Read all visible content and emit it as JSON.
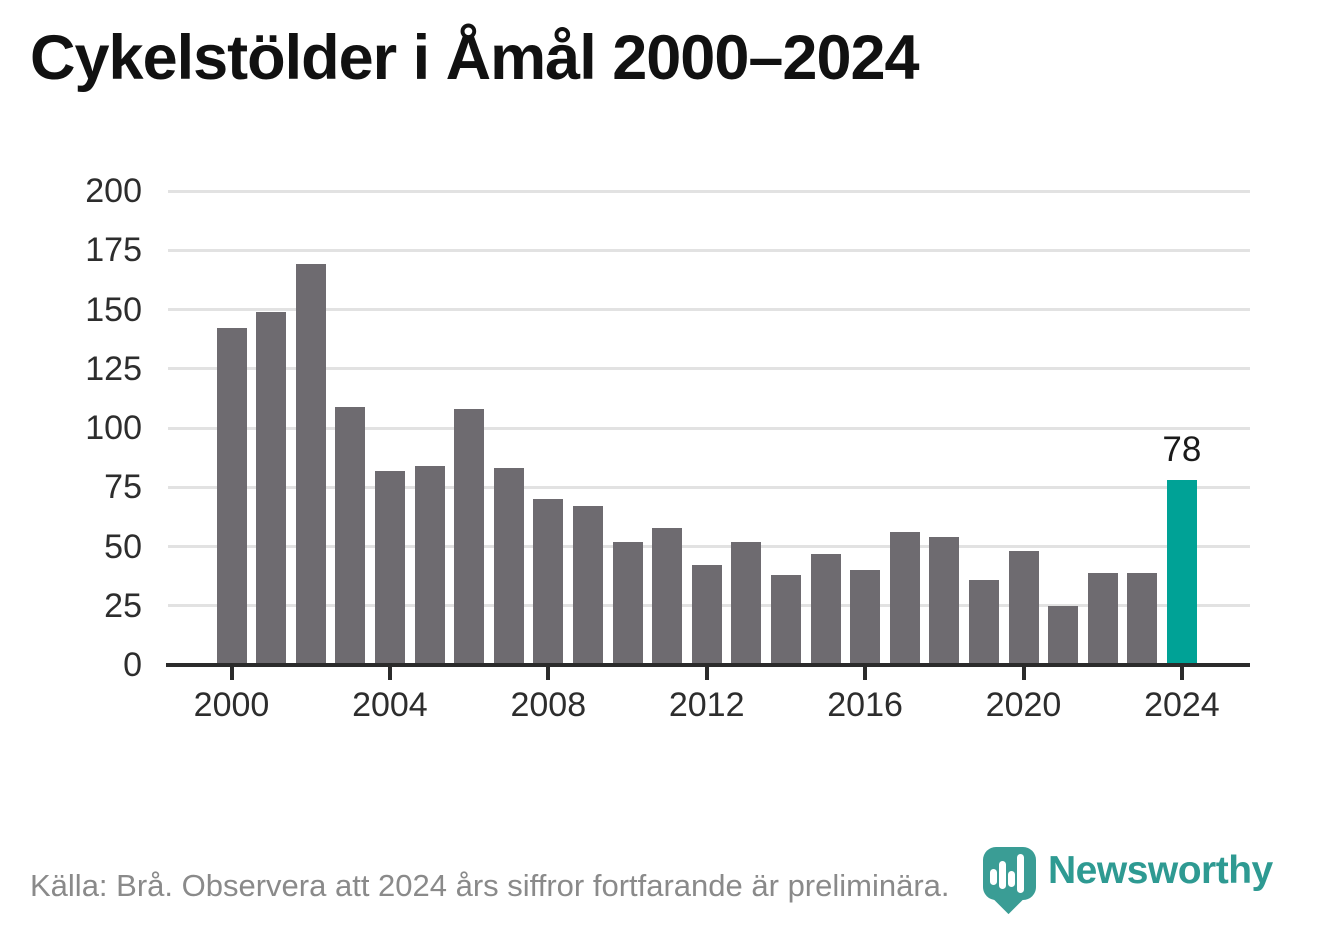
{
  "page": {
    "title": "Cykelstölder i Åmål 2000–2024"
  },
  "footer": {
    "source_note": "Källa: Brå. Observera att 2024 års siffror fortfarande är preliminära.",
    "brand_name": "Newsworthy",
    "brand_logo_icon": "newsworthy-pin-bar-chart-icon"
  },
  "colors": {
    "bar": "#6e6b70",
    "highlight": "#00a296",
    "gridline": "#e2e2e2",
    "axis": "#2b2b2b",
    "tick_label": "#2d2d2d",
    "title_text": "#111111",
    "footer_text": "#8a8a8a",
    "brand_teal": "#3a9d95",
    "brand_text": "#2e9a92"
  },
  "chart_data": {
    "type": "bar",
    "title": "Cykelstölder i Åmål 2000–2024",
    "x": [
      2000,
      2001,
      2002,
      2003,
      2004,
      2005,
      2006,
      2007,
      2008,
      2009,
      2010,
      2011,
      2012,
      2013,
      2014,
      2015,
      2016,
      2017,
      2018,
      2019,
      2020,
      2021,
      2022,
      2023,
      2024
    ],
    "values": [
      142,
      149,
      169,
      109,
      82,
      84,
      108,
      83,
      70,
      67,
      52,
      58,
      42,
      52,
      38,
      47,
      40,
      56,
      54,
      36,
      48,
      25,
      39,
      39,
      78
    ],
    "highlight": {
      "x": 2024,
      "value": 78,
      "label": "78"
    },
    "ylim": [
      0,
      200
    ],
    "yticks": [
      0,
      25,
      50,
      75,
      100,
      125,
      150,
      175,
      200
    ],
    "xticks": [
      2000,
      2004,
      2008,
      2012,
      2016,
      2020,
      2024
    ],
    "grid": true,
    "legend": null,
    "source": "Källa: Brå. Observera att 2024 års siffror fortfarande är preliminära."
  }
}
